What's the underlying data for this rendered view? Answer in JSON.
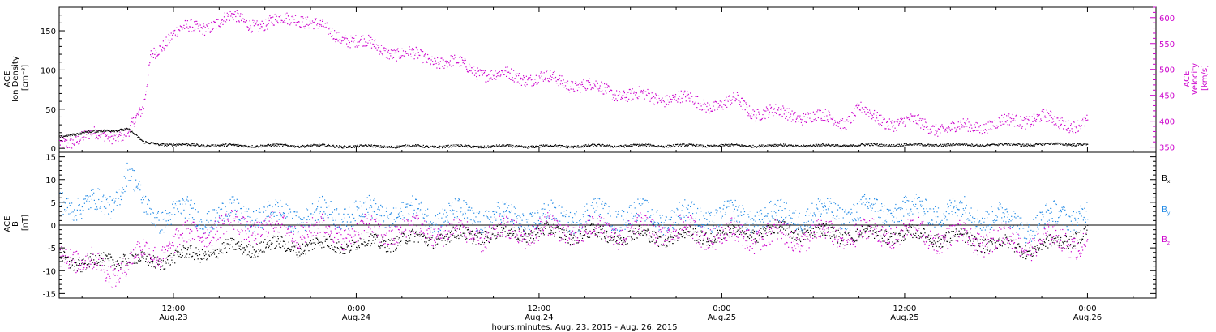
{
  "figure": {
    "xlabel": "hours:minutes, Aug. 23, 2015 - Aug. 26, 2015",
    "time_ticks": [
      {
        "hour": 12,
        "top": "12:00",
        "bottom": "Aug.23"
      },
      {
        "hour": 24,
        "top": "0:00",
        "bottom": "Aug.24"
      },
      {
        "hour": 36,
        "top": "12:00",
        "bottom": "Aug.24"
      },
      {
        "hour": 48,
        "top": "0:00",
        "bottom": "Aug.25"
      },
      {
        "hour": 60,
        "top": "12:00",
        "bottom": "Aug.25"
      },
      {
        "hour": 72,
        "top": "0:00",
        "bottom": "Aug.26"
      }
    ]
  },
  "colors": {
    "density": "#000000",
    "velocity": "#cc00cc",
    "bx": "#000000",
    "by": "#1e88e5",
    "bz": "#cc00cc"
  },
  "chart_data": [
    {
      "type": "scatter",
      "panel": "plasma",
      "xlim": [
        4.5,
        76.5
      ],
      "ylabel_left": [
        "ACE",
        "Ion Density",
        "[cm⁻³]"
      ],
      "ylabel_right": [
        "ACE",
        "Velocity",
        "[km/s]"
      ],
      "ylim_left": [
        -5,
        180
      ],
      "ylim_right": [
        340,
        620
      ],
      "yticks_left": [
        0,
        50,
        100,
        150
      ],
      "yticks_right": [
        350,
        400,
        450,
        500,
        550,
        600
      ],
      "series": [
        {
          "axis": "left",
          "color": "#000000",
          "x": [
            4.5,
            5,
            6,
            7,
            8,
            9,
            10,
            12,
            16,
            20,
            24,
            30,
            36,
            42,
            48,
            54,
            60,
            66,
            70,
            72
          ],
          "y": [
            15,
            18,
            20,
            22,
            24,
            25,
            8,
            5,
            4,
            4,
            3,
            3,
            3,
            4,
            4,
            4,
            5,
            5,
            6,
            6
          ],
          "jitter": 1.5
        },
        {
          "axis": "right",
          "color": "#cc00cc",
          "x": [
            4.5,
            6,
            8,
            9,
            10,
            10.5,
            11,
            12,
            13,
            14,
            16,
            18,
            20,
            22,
            24,
            27,
            30,
            33,
            36,
            39,
            42,
            45,
            47,
            48,
            49,
            50,
            52,
            54,
            56,
            57,
            58,
            59,
            60,
            62,
            63,
            64,
            66,
            68,
            69,
            70,
            72
          ],
          "y": [
            360,
            370,
            375,
            380,
            420,
            530,
            545,
            570,
            580,
            585,
            600,
            585,
            605,
            575,
            555,
            530,
            515,
            490,
            485,
            470,
            450,
            445,
            435,
            430,
            440,
            420,
            415,
            410,
            400,
            425,
            405,
            400,
            400,
            390,
            385,
            390,
            395,
            405,
            410,
            395,
            400
          ],
          "jitter": 12
        }
      ]
    },
    {
      "type": "scatter",
      "panel": "magnetic field",
      "xlim": [
        4.5,
        76.5
      ],
      "ylabel": [
        "ACE",
        "B",
        "[nT]"
      ],
      "ylim": [
        -16,
        16
      ],
      "yticks": [
        -15,
        -10,
        -5,
        0,
        5,
        10,
        15
      ],
      "legend": [
        "Bx",
        "By",
        "Bz"
      ],
      "series": [
        {
          "name": "Bx",
          "color": "#000000",
          "x": [
            4.5,
            6,
            8,
            10,
            12,
            14,
            16,
            18,
            20,
            24,
            28,
            32,
            36,
            40,
            44,
            48,
            52,
            56,
            60,
            64,
            66,
            68,
            70,
            72
          ],
          "y": [
            -6,
            -9,
            -7,
            -8,
            -7,
            -6,
            -5,
            -4.5,
            -4.5,
            -4,
            -3,
            -2,
            -1.5,
            -2,
            -2.5,
            -2,
            -1,
            -2,
            -2,
            -3,
            -4,
            -5,
            -4,
            -1
          ],
          "jitter": 1.5
        },
        {
          "name": "By",
          "color": "#1e88e5",
          "x": [
            4.5,
            6,
            8,
            9,
            10,
            11,
            12,
            14,
            16,
            20,
            24,
            28,
            32,
            36,
            40,
            44,
            48,
            52,
            56,
            60,
            64,
            66,
            68,
            70,
            72
          ],
          "y": [
            6,
            4,
            5,
            12,
            4,
            2,
            3,
            2,
            2.5,
            2,
            3,
            2.5,
            2,
            1.5,
            2.5,
            2,
            2,
            2,
            3,
            3.5,
            3,
            2,
            0,
            2,
            3
          ],
          "jitter": 2.5
        },
        {
          "name": "Bz",
          "color": "#cc00cc",
          "x": [
            4.5,
            6,
            8,
            9,
            10,
            11,
            12,
            14,
            16,
            20,
            24,
            28,
            32,
            36,
            40,
            44,
            48,
            52,
            56,
            60,
            64,
            66,
            68,
            70,
            72
          ],
          "y": [
            -4,
            -8,
            -10,
            -8,
            -6,
            -6,
            -4,
            -1,
            0,
            -1,
            -1.5,
            -1,
            -2,
            -1,
            -1.5,
            -1,
            -2,
            -2.5,
            -2,
            -1.5,
            -3,
            -3,
            -4,
            -3,
            -4
          ],
          "jitter": 2.5
        }
      ]
    }
  ]
}
